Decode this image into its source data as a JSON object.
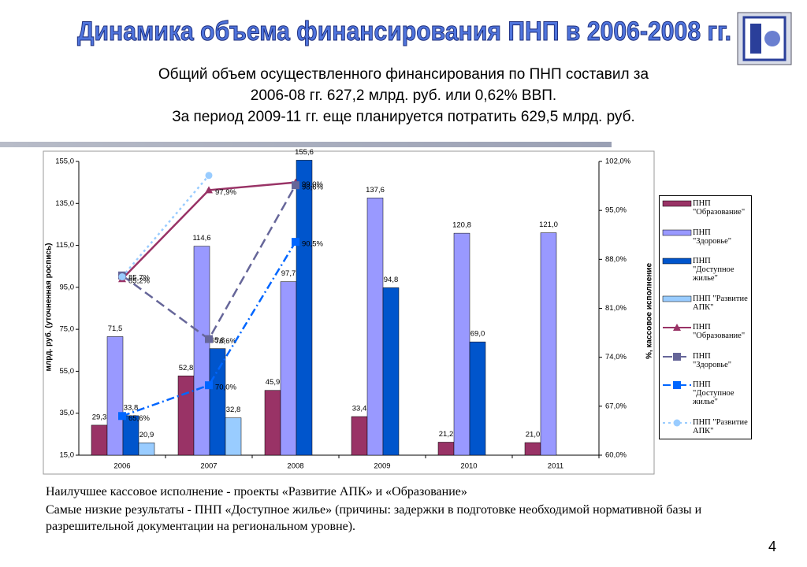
{
  "header": {
    "title": "Динамика объема финансирования ПНП в 2006-2008 гг.",
    "lines": [
      "Общий объем осуществленного финансирования по ПНП составил за",
      "2006-08 гг. 627,2 млрд. руб. или 0,62% ВВП.",
      "За период 2009-11 гг. еще планируется потратить 629,5 млрд. руб."
    ]
  },
  "chart_data": {
    "type": "combo",
    "categories": [
      "2006",
      "2007",
      "2008",
      "2009",
      "2010",
      "2011"
    ],
    "y_label": "млрд. руб. (уточненная роспись)",
    "y2_label": "%, кассовое исполнение",
    "ylim": [
      15,
      155
    ],
    "yticks": [
      {
        "value": 15,
        "label": "15,0"
      },
      {
        "value": 35,
        "label": "35,0"
      },
      {
        "value": 55,
        "label": "55,0"
      },
      {
        "value": 75,
        "label": "75,0"
      },
      {
        "value": 95,
        "label": "95,0"
      },
      {
        "value": 115,
        "label": "115,0"
      },
      {
        "value": 135,
        "label": "135,0"
      },
      {
        "value": 155,
        "label": "155,0"
      }
    ],
    "y2lim": [
      60,
      102
    ],
    "y2ticks": [
      {
        "value": 60,
        "label": "60,0%"
      },
      {
        "value": 67,
        "label": "67,0%"
      },
      {
        "value": 74,
        "label": "74,0%"
      },
      {
        "value": 81,
        "label": "81,0%"
      },
      {
        "value": 88,
        "label": "88,0%"
      },
      {
        "value": 95,
        "label": "95,0%"
      },
      {
        "value": 102,
        "label": "102,0%"
      }
    ],
    "series": [
      {
        "name": "ПНП \"Образование\"",
        "type": "bar",
        "color": "#993366",
        "values": [
          29.3,
          52.8,
          45.9,
          33.4,
          21.2,
          21.0
        ],
        "value_labels": [
          "29,3",
          "52,8",
          "45,9",
          "33,4",
          "21,2",
          "21,0"
        ]
      },
      {
        "name": "ПНП \"Здоровье\"",
        "type": "bar",
        "color": "#9999ff",
        "values": [
          71.5,
          114.6,
          97.7,
          137.6,
          120.8,
          121.0
        ],
        "value_labels": [
          "71,5",
          "114,6",
          "97,7",
          "137,6",
          "120,8",
          "121,0"
        ]
      },
      {
        "name": "ПНП \"Доступное жилье\"",
        "type": "bar",
        "color": "#0055cc",
        "values": [
          33.8,
          65.8,
          155.6,
          94.8,
          69.0,
          null
        ],
        "value_labels": [
          "33,8",
          "65,8",
          "155,6",
          "94,8",
          "69,0",
          null
        ]
      },
      {
        "name": "ПНП \"Развитие АПК\"",
        "type": "bar",
        "color": "#99ccff",
        "values": [
          20.9,
          32.8,
          null,
          null,
          null,
          null
        ],
        "value_labels": [
          "20,9",
          "32,8",
          null,
          null,
          null,
          null
        ]
      },
      {
        "name": "ПНП \"Образование\"",
        "type": "line",
        "axis": "y2",
        "color": "#993366",
        "marker": "triangle",
        "dash": "solid",
        "values": [
          85.2,
          97.9,
          99.0,
          null,
          null,
          null
        ],
        "value_labels": [
          "85,2%",
          "97,9%",
          "99,0%",
          null,
          null,
          null
        ]
      },
      {
        "name": "ПНП \"Здоровье\"",
        "type": "line",
        "axis": "y2",
        "color": "#666699",
        "marker": "square",
        "dash": "dashed",
        "values": [
          85.7,
          76.6,
          98.6,
          null,
          null,
          null
        ],
        "value_labels": [
          "85,7%",
          "76,6%",
          "98,6%",
          null,
          null,
          null
        ]
      },
      {
        "name": "ПНП \"Доступное жилье\"",
        "type": "line",
        "axis": "y2",
        "color": "#0066ff",
        "marker": "square",
        "dash": "dashdot",
        "values": [
          65.6,
          70.0,
          90.5,
          null,
          null,
          null
        ],
        "value_labels": [
          "65,6%",
          "70,0%",
          "90,5%",
          null,
          null,
          null
        ]
      },
      {
        "name": "ПНП \"Развитие АПК\"",
        "type": "line",
        "axis": "y2",
        "color": "#99ccff",
        "marker": "circle",
        "dash": "dotted",
        "values": [
          85.5,
          100.0,
          null,
          null,
          null,
          null
        ]
      }
    ]
  },
  "notes": [
    "Наилучшее кассовое исполнение  - проекты «Развитие АПК» и «Образование»",
    "Самые низкие результаты  - ПНП «Доступное жилье» (причины: задержки в подготовке необходимой нормативной базы и разрешительной документации на региональном уровне)."
  ],
  "page_number": "4"
}
